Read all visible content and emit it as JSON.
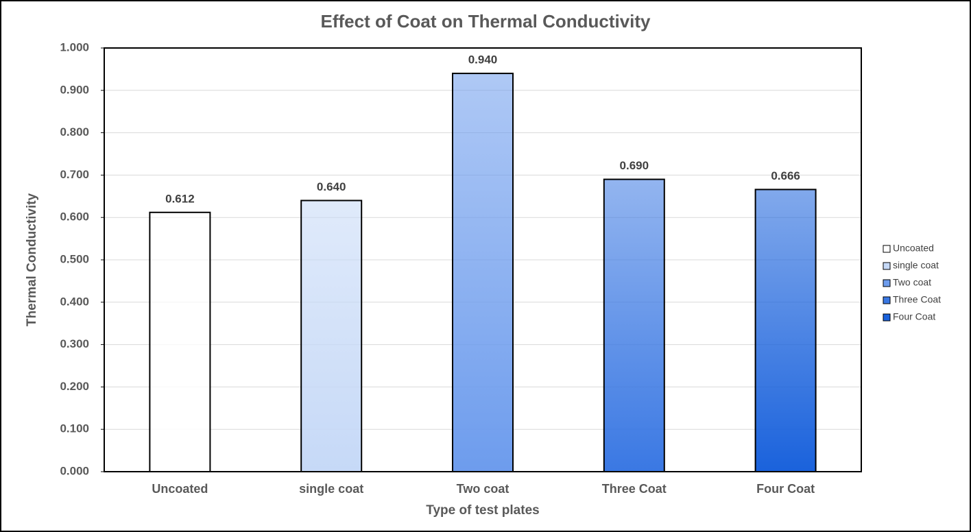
{
  "chart_data": {
    "type": "bar",
    "title": "Effect of Coat on Thermal Conductivity",
    "xlabel": "Type of test plates",
    "ylabel": "Thermal Conductivity",
    "categories": [
      "Uncoated",
      "single coat",
      "Two coat",
      "Three Coat",
      "Four Coat"
    ],
    "values": [
      0.612,
      0.64,
      0.94,
      0.69,
      0.666
    ],
    "value_labels": [
      "0.612",
      "0.640",
      "0.940",
      "0.690",
      "0.666"
    ],
    "colors": [
      "#ffffff",
      "#c6d9f7",
      "#6d9ced",
      "#3a78e3",
      "#1a62dc"
    ],
    "ylim": [
      0,
      1
    ],
    "yticks": [
      {
        "value": 0,
        "label": "0.000"
      },
      {
        "value": 0.1,
        "label": "0.100"
      },
      {
        "value": 0.2,
        "label": "0.200"
      },
      {
        "value": 0.3,
        "label": "0.300"
      },
      {
        "value": 0.4,
        "label": "0.400"
      },
      {
        "value": 0.5,
        "label": "0.500"
      },
      {
        "value": 0.6,
        "label": "0.600"
      },
      {
        "value": 0.7,
        "label": "0.700"
      },
      {
        "value": 0.8,
        "label": "0.800"
      },
      {
        "value": 0.9,
        "label": "0.900"
      },
      {
        "value": 1,
        "label": "1.000"
      }
    ],
    "grid": true,
    "legend": "right"
  }
}
